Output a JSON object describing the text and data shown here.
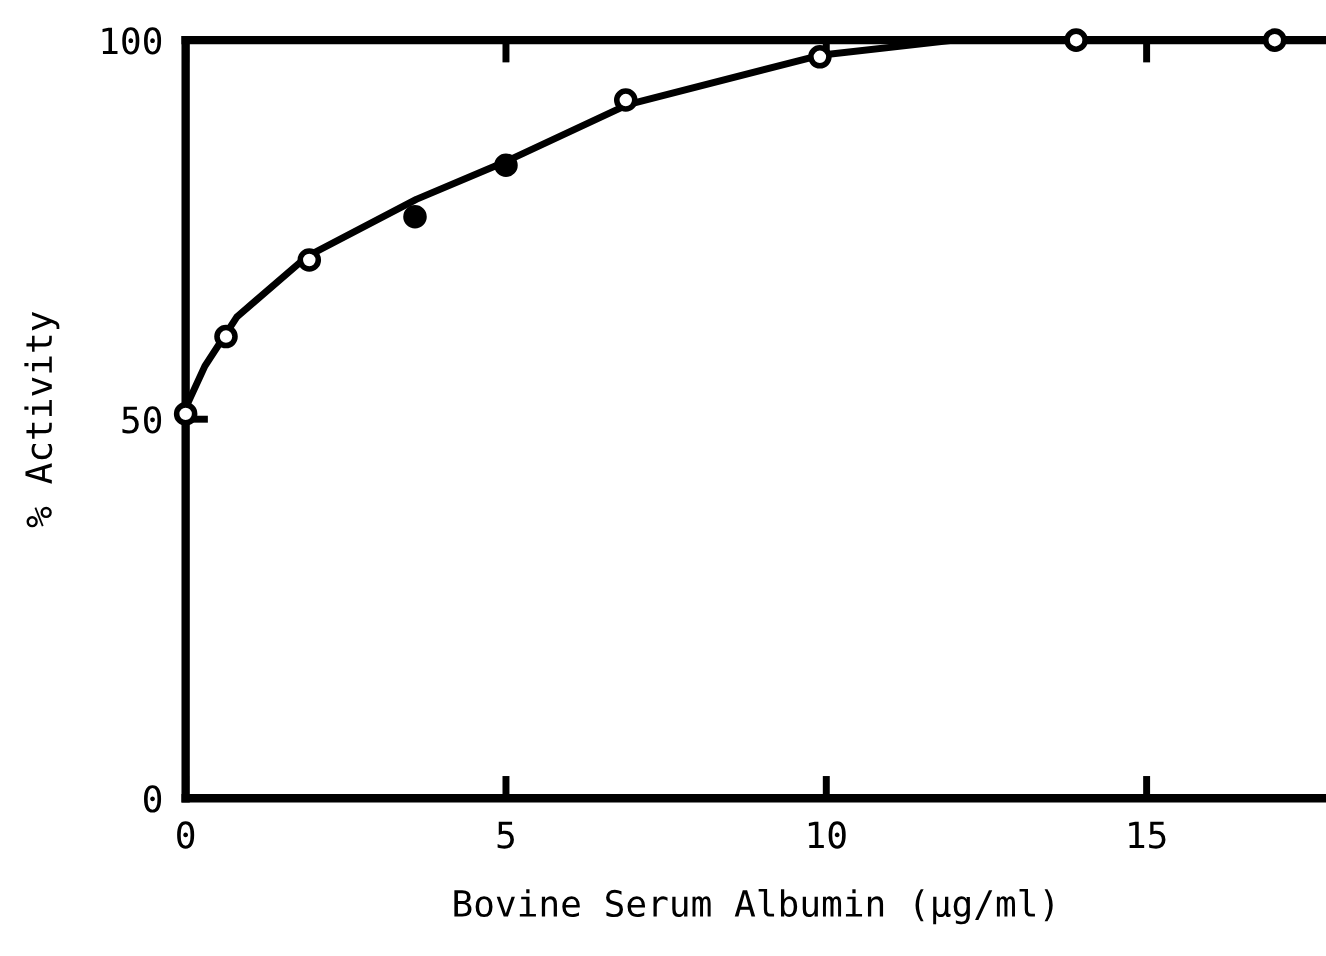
{
  "chart_data": {
    "type": "scatter",
    "xlabel": "Bovine Serum Albumin (µg/ml)",
    "ylabel": "% Activity",
    "xlim": [
      0,
      17.8
    ],
    "ylim": [
      0,
      100
    ],
    "xticks": [
      0,
      5,
      10,
      15
    ],
    "yticks": [
      0,
      50,
      100
    ],
    "grid": false,
    "legend": false,
    "series": [
      {
        "type": "line",
        "color": "#000000",
        "marker": "none",
        "line_style": "solid",
        "x": [
          0,
          0.3,
          0.8,
          1.9,
          3.6,
          5.0,
          6.9,
          9.9,
          12.0,
          14.0,
          17.8
        ],
        "values": [
          51.5,
          57,
          63.5,
          71.5,
          79,
          84,
          91.5,
          98,
          100,
          100,
          100
        ]
      },
      {
        "marker": "circle",
        "x": [
          0.0,
          0.63,
          1.93,
          3.58,
          5.0,
          6.87,
          9.9,
          13.9,
          17.0
        ],
        "values": [
          50.7,
          60.9,
          71.0,
          76.7,
          83.5,
          92.1,
          97.8,
          100,
          100
        ],
        "colors": [
          "#ffffff",
          "#ffffff",
          "#ffffff",
          "#000000",
          "#000000",
          "#ffffff",
          "#ffffff",
          "#ffffff",
          "#ffffff"
        ]
      }
    ]
  }
}
